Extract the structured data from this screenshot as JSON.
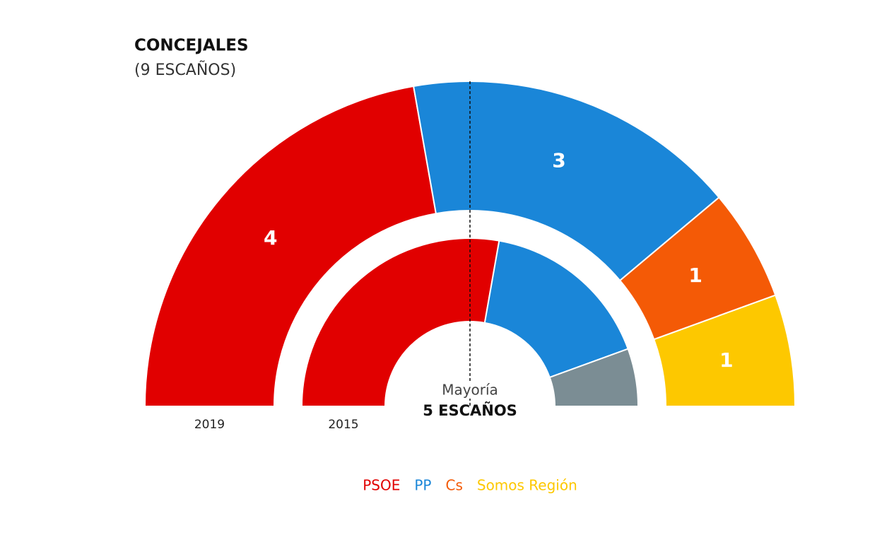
{
  "chart_data": {
    "type": "parliament",
    "title": "CONCEJALES",
    "subtitle": "(9 ESCAÑOS)",
    "categories": [
      "2019",
      "2015"
    ],
    "series": [
      {
        "name": "PSOE",
        "color": "#e10000",
        "values": [
          4,
          5
        ]
      },
      {
        "name": "PP",
        "color": "#1a86d8",
        "values": [
          3,
          3
        ]
      },
      {
        "name": "Cs",
        "color": "#f45a06",
        "values": [
          1,
          0
        ]
      },
      {
        "name": "Somos Región",
        "color": "#fdc800",
        "values": [
          1,
          0
        ]
      },
      {
        "name": null,
        "color": "#7b8d94",
        "values": [
          0,
          1
        ]
      }
    ],
    "annotation": "Mayoría",
    "annotation_value": "5 ESCAÑOS"
  }
}
